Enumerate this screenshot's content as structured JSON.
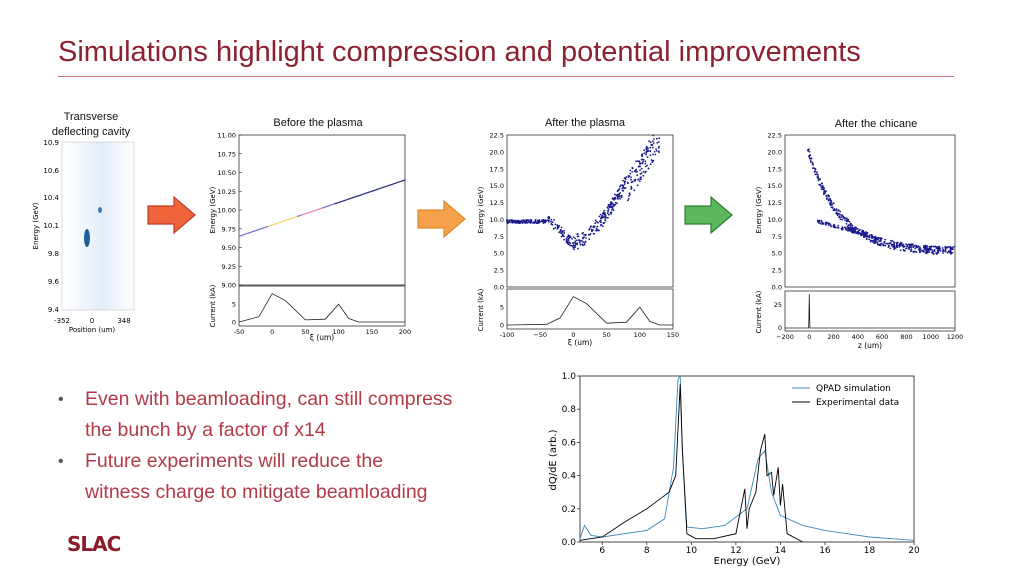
{
  "slide": {
    "title": "Simulations highlight compression and potential improvements",
    "captions": {
      "tdc": [
        "Transverse",
        "deflecting cavity"
      ],
      "before": "Before the plasma",
      "after": "After the plasma",
      "chicane": "After the chicane"
    },
    "bullets": [
      {
        "lines": [
          "Even with beamloading, can still compress",
          "the bunch by a factor of x14"
        ]
      },
      {
        "lines": [
          "Future experiments will reduce the",
          "witness charge to mitigate beamloading"
        ]
      }
    ],
    "logo": "SLAC"
  },
  "colors": {
    "title": "#8c2131",
    "bullet_text": "#b23a48",
    "arrow_red": "#f0643c",
    "arrow_orange": "#f5a04a",
    "arrow_green": "#4caf50",
    "scatter": "#1a1a8c",
    "qpad": "#3b8ab8",
    "experiment": "#000000"
  },
  "chart_data": [
    {
      "type": "heatmap",
      "id": "tdc",
      "ylabel": "Energy (GeV)",
      "xlabel": "Position (um)",
      "xticks": [
        "-352",
        "0",
        "348"
      ],
      "yticks": [
        "10.9",
        "10.6",
        "10.4",
        "10.1",
        "9.8",
        "9.6",
        "9.4"
      ]
    },
    {
      "type": "line",
      "id": "before",
      "ylabel": "Energy (GeV)",
      "xlabel": "ξ (um)",
      "ylabel_bottom": "Current (kA)",
      "yticks": [
        "11.00",
        "10.75",
        "10.50",
        "10.25",
        "10.00",
        "9.75",
        "9.50",
        "9.25",
        "9.00"
      ],
      "xticks": [
        "-50",
        "0",
        "50",
        "100",
        "150",
        "200"
      ],
      "cur_yticks": [
        "5",
        "0"
      ],
      "ylim": [
        9.0,
        11.0
      ],
      "xlim": [
        -50,
        200
      ],
      "line": {
        "x": [
          -50,
          200
        ],
        "y": [
          9.65,
          10.4
        ]
      },
      "current": {
        "x": [
          -50,
          -20,
          0,
          20,
          50,
          80,
          100,
          115,
          130,
          200
        ],
        "y": [
          0,
          1.5,
          8,
          6,
          0.6,
          0.8,
          5,
          1,
          0,
          0
        ]
      }
    },
    {
      "type": "scatter",
      "id": "after",
      "ylabel": "Energy (GeV)",
      "xlabel": "ξ (um)",
      "ylabel_bottom": "Current (kA)",
      "yticks": [
        "22.5",
        "20.0",
        "17.5",
        "15.0",
        "12.5",
        "10.0",
        "7.5",
        "5.0",
        "2.5",
        "0.0"
      ],
      "xticks": [
        "-100",
        "−50",
        "0",
        "50",
        "100",
        "150"
      ],
      "cur_yticks": [
        "5",
        "0"
      ],
      "ylim": [
        0,
        22.5
      ],
      "xlim": [
        -100,
        150
      ]
    },
    {
      "type": "scatter",
      "id": "chicane",
      "ylabel": "Energy (GeV)",
      "xlabel": "z (um)",
      "ylabel_bottom": "Current (kA)",
      "yticks": [
        "22.5",
        "20.0",
        "17.5",
        "15.0",
        "12.5",
        "10.0",
        "7.5",
        "5.0",
        "2.5",
        "0.0"
      ],
      "xticks": [
        "−200",
        "0",
        "200",
        "400",
        "600",
        "800",
        "1000",
        "1200"
      ],
      "cur_yticks": [
        "25",
        "0"
      ],
      "ylim": [
        0,
        22.5
      ],
      "xlim": [
        -200,
        1200
      ]
    },
    {
      "type": "line",
      "id": "spectrum",
      "xlabel": "Energy (GeV)",
      "ylabel": "dQ/dE (arb.)",
      "xlim": [
        5,
        20
      ],
      "ylim": [
        0,
        1
      ],
      "xticks": [
        "6",
        "8",
        "10",
        "12",
        "14",
        "16",
        "18",
        "20"
      ],
      "yticks": [
        "1.0",
        "0.8",
        "0.6",
        "0.4",
        "0.2",
        "0.0"
      ],
      "legend": [
        "QPAD simulation",
        "Experimental data"
      ],
      "legend_position": "top-right",
      "series": [
        {
          "name": "QPAD simulation",
          "x": [
            5,
            5.2,
            5.5,
            6,
            7,
            8,
            8.8,
            9.2,
            9.4,
            9.5,
            9.6,
            9.8,
            10.5,
            11.5,
            12.5,
            13,
            13.3,
            13.6,
            14,
            15,
            16,
            17,
            18,
            19,
            20
          ],
          "y": [
            0.02,
            0.1,
            0.04,
            0.03,
            0.05,
            0.07,
            0.14,
            0.45,
            0.98,
            1.0,
            0.55,
            0.09,
            0.08,
            0.1,
            0.2,
            0.5,
            0.55,
            0.3,
            0.16,
            0.1,
            0.07,
            0.05,
            0.03,
            0.02,
            0.01
          ]
        },
        {
          "name": "Experimental data",
          "x": [
            5,
            6,
            7,
            8,
            8.6,
            9.0,
            9.3,
            9.5,
            9.6,
            9.8,
            10.2,
            11,
            12,
            12.4,
            12.5,
            12.6,
            12.9,
            13.1,
            13.3,
            13.4,
            13.6,
            13.7,
            13.9,
            14.0,
            14.1,
            14.3,
            15
          ],
          "y": [
            0.01,
            0.03,
            0.12,
            0.2,
            0.26,
            0.3,
            0.4,
            0.95,
            0.55,
            0.05,
            0.02,
            0.02,
            0.05,
            0.32,
            0.08,
            0.2,
            0.3,
            0.55,
            0.65,
            0.4,
            0.42,
            0.28,
            0.45,
            0.22,
            0.35,
            0.05,
            0.0
          ]
        }
      ]
    }
  ]
}
